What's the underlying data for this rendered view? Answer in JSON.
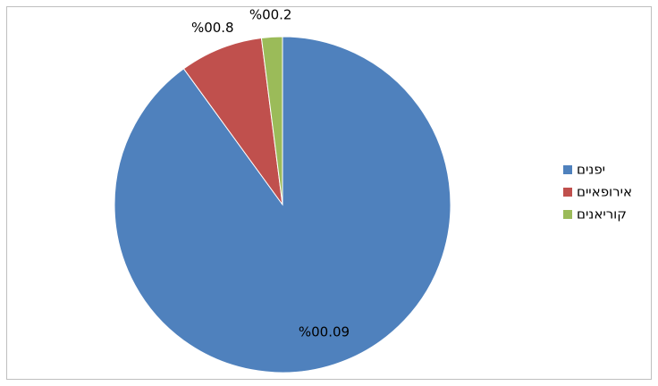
{
  "chart_data": {
    "type": "pie",
    "categories": [
      "יפנים",
      "אירופאיים",
      "קוריאנים"
    ],
    "values": [
      90,
      8,
      2
    ],
    "value_labels": [
      "90.00%",
      "8.00%",
      "2.00%"
    ],
    "colors": [
      "#4f81bd",
      "#c0504d",
      "#9bbb59"
    ],
    "legend": "right"
  }
}
